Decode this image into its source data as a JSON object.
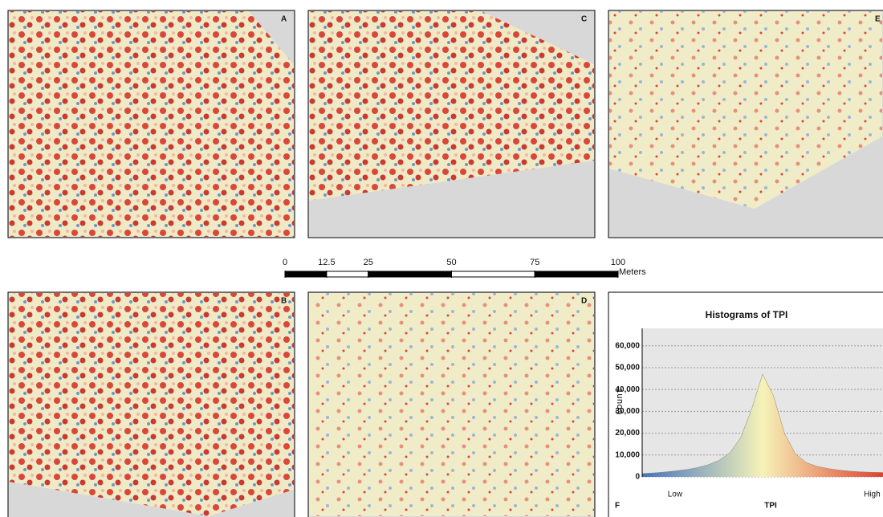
{
  "panels": [
    {
      "label": "A"
    },
    {
      "label": "C"
    },
    {
      "label": "E"
    },
    {
      "label": "B"
    },
    {
      "label": "D"
    }
  ],
  "scale_bar": {
    "ticks": [
      0,
      12.5,
      25,
      50,
      75,
      100
    ],
    "unit": "Meters"
  },
  "chart_data": {
    "type": "area",
    "panel_label": "F",
    "title": "Histograms of TPI",
    "x_label": "TPI",
    "y_label": "Count",
    "categories": [
      null,
      null,
      null,
      "Low",
      null,
      null,
      null,
      null,
      null,
      null,
      null,
      null,
      null,
      null,
      null,
      null,
      null,
      null,
      null,
      null,
      null,
      "High",
      null
    ],
    "values": [
      1500,
      1800,
      2200,
      2700,
      3300,
      4200,
      5500,
      7500,
      11000,
      18000,
      31000,
      47000,
      37000,
      20000,
      10500,
      6500,
      4800,
      3800,
      3100,
      2600,
      2300,
      2100,
      2000
    ],
    "colors": [
      "#3f73c0",
      "#f6f3b8",
      "#e0402f"
    ],
    "ylim": [
      0,
      68000
    ],
    "yticks": [
      0,
      {
        "value": 10000,
        "label": "10,000"
      },
      {
        "value": 20000,
        "label": "20,000"
      },
      {
        "value": 30000,
        "label": "30,000"
      },
      {
        "value": 40000,
        "label": "40,000"
      },
      {
        "value": 50000,
        "label": "50,000"
      },
      {
        "value": 60000,
        "label": "60,000"
      }
    ],
    "grid": true
  }
}
